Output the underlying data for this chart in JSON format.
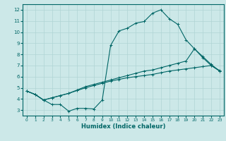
{
  "title": "",
  "xlabel": "Humidex (Indice chaleur)",
  "ylabel": "",
  "bg_color": "#cce8e8",
  "grid_color": "#b0d4d4",
  "line_color": "#006666",
  "xlim": [
    -0.5,
    23.5
  ],
  "ylim": [
    2.5,
    12.5
  ],
  "xticks": [
    0,
    1,
    2,
    3,
    4,
    5,
    6,
    7,
    8,
    9,
    10,
    11,
    12,
    13,
    14,
    15,
    16,
    17,
    18,
    19,
    20,
    21,
    22,
    23
  ],
  "yticks": [
    3,
    4,
    5,
    6,
    7,
    8,
    9,
    10,
    11,
    12
  ],
  "line1_x": [
    0,
    1,
    2,
    3,
    4,
    5,
    6,
    7,
    8,
    9,
    10,
    11,
    12,
    13,
    14,
    15,
    16,
    17,
    18,
    19,
    20,
    21,
    22,
    23
  ],
  "line1_y": [
    4.7,
    4.4,
    3.9,
    3.5,
    3.5,
    2.9,
    3.15,
    3.15,
    3.1,
    3.9,
    8.8,
    10.1,
    10.35,
    10.8,
    10.95,
    11.7,
    12.0,
    11.2,
    10.7,
    9.3,
    8.5,
    7.7,
    7.0,
    6.5
  ],
  "line2_x": [
    0,
    1,
    2,
    3,
    4,
    5,
    6,
    7,
    8,
    9,
    10,
    11,
    12,
    13,
    14,
    15,
    16,
    17,
    18,
    19,
    20,
    21,
    22,
    23
  ],
  "line2_y": [
    4.7,
    4.4,
    3.9,
    4.1,
    4.3,
    4.5,
    4.8,
    5.1,
    5.3,
    5.5,
    5.7,
    5.9,
    6.1,
    6.3,
    6.5,
    6.6,
    6.8,
    7.0,
    7.2,
    7.4,
    8.5,
    7.8,
    7.1,
    6.5
  ],
  "line3_x": [
    0,
    1,
    2,
    3,
    4,
    5,
    6,
    7,
    8,
    9,
    10,
    11,
    12,
    13,
    14,
    15,
    16,
    17,
    18,
    19,
    20,
    21,
    22,
    23
  ],
  "line3_y": [
    4.7,
    4.4,
    3.9,
    4.1,
    4.3,
    4.5,
    4.75,
    5.0,
    5.2,
    5.4,
    5.6,
    5.75,
    5.9,
    6.0,
    6.1,
    6.2,
    6.35,
    6.5,
    6.6,
    6.7,
    6.8,
    6.9,
    7.0,
    6.55
  ],
  "label_fontsize": 5.5,
  "xlabel_fontsize": 6.0,
  "tick_fontsize_x": 4.2,
  "tick_fontsize_y": 5.0
}
